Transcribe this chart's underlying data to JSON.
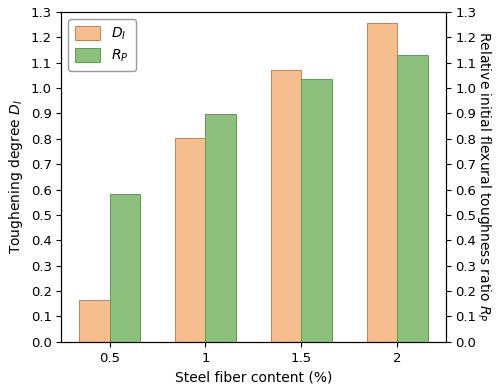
{
  "categories": [
    "0.5",
    "1",
    "1.5",
    "2"
  ],
  "DI_values": [
    0.163,
    0.802,
    1.07,
    1.255
  ],
  "RP_values": [
    0.583,
    0.898,
    1.035,
    1.13
  ],
  "DI_color": "#F5BE8E",
  "RP_color": "#8DC07C",
  "DI_edgecolor": "#C8834A",
  "RP_edgecolor": "#5A9E4A",
  "xlabel": "Steel fiber content (%)",
  "ylabel_left": "Toughening degree $D_I$",
  "ylabel_right": "Relative initial flexural toughness ratio $R_P$",
  "ylim": [
    0.0,
    1.3
  ],
  "yticks": [
    0.0,
    0.1,
    0.2,
    0.3,
    0.4,
    0.5,
    0.6,
    0.7,
    0.8,
    0.9,
    1.0,
    1.1,
    1.2,
    1.3
  ],
  "legend_DI": "$D_I$",
  "legend_RP": "$R_P$",
  "bar_width": 0.32,
  "xlabel_fontsize": 10,
  "ylabel_fontsize": 10,
  "tick_fontsize": 9.5,
  "legend_fontsize": 10
}
